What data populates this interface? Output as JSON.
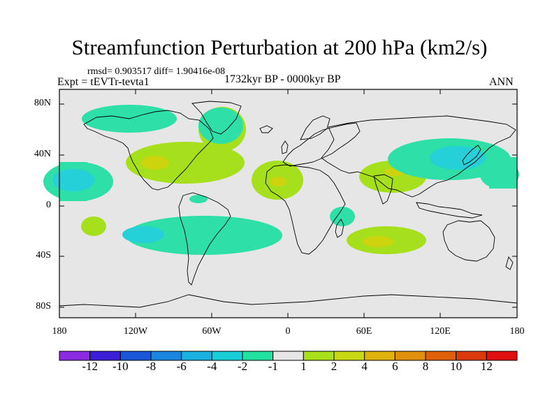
{
  "figure": {
    "title": "Streamfunction Perturbation at 200 hPa (km2/s)",
    "stats": "rmsd= 0.903517  diff= 1.90416e-08",
    "experiment": "Expt = tEVTr-tevta1",
    "period": "1732kyr BP - 0000kyr BP",
    "season": "ANN"
  },
  "axes": {
    "lat_labels": [
      "80N",
      "40N",
      "0",
      "40S",
      "80S"
    ],
    "lon_labels": [
      "180",
      "120W",
      "60W",
      "0",
      "60E",
      "120E",
      "180"
    ]
  },
  "colorbar": {
    "labels": [
      "-12",
      "-10",
      "-8",
      "-6",
      "-4",
      "-2",
      "-1",
      "1",
      "2",
      "4",
      "6",
      "8",
      "10",
      "12"
    ],
    "colors": [
      "#8a2be2",
      "#3a1fd6",
      "#1a56d8",
      "#1b86e0",
      "#1ab0e0",
      "#18cdd5",
      "#22e0a0",
      "#e6e6e6",
      "#a8e01a",
      "#c8d812",
      "#e0b20c",
      "#e0900a",
      "#e0600a",
      "#dc3a0a",
      "#e01010"
    ]
  },
  "map_colors": {
    "background": "#e6e6e6",
    "teal": "#2ee0a8",
    "cyan": "#25d0d8",
    "green": "#a6e01c",
    "yellow": "#cdd40e"
  }
}
